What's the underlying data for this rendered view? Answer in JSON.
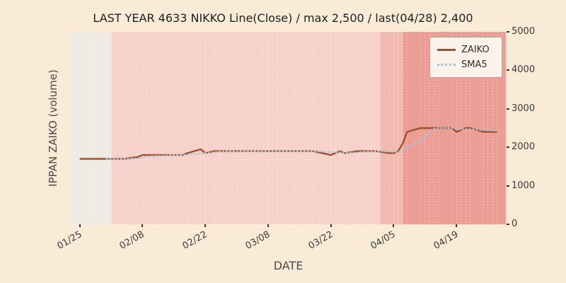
{
  "chart_data": {
    "type": "line",
    "title": "LAST YEAR 4633 NIKKO Line(Close) / max 2,500 / last(04/28) 2,400",
    "xlabel": "DATE",
    "ylabel": "IPPAN ZAIKO (volume)",
    "ylim": [
      0,
      5000
    ],
    "yticks": [
      0,
      1000,
      2000,
      3000,
      4000,
      5000
    ],
    "xticks": [
      "01/25",
      "02/08",
      "02/22",
      "03/08",
      "03/22",
      "04/05",
      "04/19"
    ],
    "x_domain": [
      "01/23",
      "04/30"
    ],
    "grid": "vertical-dotted-white",
    "legend_position": "upper right",
    "x": [
      "01/25",
      "01/26",
      "01/27",
      "01/28",
      "01/31",
      "02/01",
      "02/02",
      "02/03",
      "02/04",
      "02/07",
      "02/08",
      "02/09",
      "02/10",
      "02/14",
      "02/15",
      "02/16",
      "02/17",
      "02/18",
      "02/21",
      "02/22",
      "02/24",
      "02/25",
      "02/28",
      "03/01",
      "03/02",
      "03/03",
      "03/04",
      "03/07",
      "03/08",
      "03/09",
      "03/10",
      "03/11",
      "03/14",
      "03/15",
      "03/16",
      "03/17",
      "03/18",
      "03/22",
      "03/23",
      "03/24",
      "03/25",
      "03/28",
      "03/29",
      "03/30",
      "03/31",
      "04/01",
      "04/04",
      "04/05",
      "04/06",
      "04/07",
      "04/08",
      "04/11",
      "04/12",
      "04/13",
      "04/14",
      "04/15",
      "04/18",
      "04/19",
      "04/20",
      "04/21",
      "04/22",
      "04/25",
      "04/26",
      "04/27",
      "04/28"
    ],
    "series": [
      {
        "name": "ZAIKO",
        "color": "#a0512b",
        "style": "solid",
        "values": [
          1700,
          1700,
          1700,
          1700,
          1700,
          1700,
          1700,
          1700,
          1700,
          1750,
          1800,
          1800,
          1800,
          1800,
          1800,
          1800,
          1800,
          1850,
          1950,
          1850,
          1900,
          1900,
          1900,
          1900,
          1900,
          1900,
          1900,
          1900,
          1900,
          1900,
          1900,
          1900,
          1900,
          1900,
          1900,
          1900,
          1900,
          1800,
          1850,
          1900,
          1850,
          1900,
          1900,
          1900,
          1900,
          1900,
          1850,
          1850,
          1900,
          2100,
          2400,
          2500,
          2500,
          2500,
          2500,
          2500,
          2500,
          2400,
          2450,
          2500,
          2500,
          2400,
          2400,
          2400,
          2400
        ]
      },
      {
        "name": "SMA5",
        "color": "#a9c5da",
        "style": "dotted",
        "values": [
          null,
          null,
          null,
          null,
          1700,
          1700,
          1700,
          1700,
          1700,
          1710,
          1730,
          1750,
          1770,
          1790,
          1800,
          1800,
          1800,
          1810,
          1840,
          1850,
          1870,
          1890,
          1900,
          1890,
          1900,
          1900,
          1900,
          1900,
          1900,
          1900,
          1900,
          1900,
          1900,
          1900,
          1900,
          1900,
          1900,
          1880,
          1870,
          1870,
          1860,
          1860,
          1880,
          1890,
          1890,
          1900,
          1890,
          1880,
          1880,
          1920,
          2020,
          2150,
          2280,
          2400,
          2480,
          2500,
          2500,
          2480,
          2470,
          2470,
          2470,
          2450,
          2450,
          2440,
          2420
        ]
      }
    ],
    "bands": [
      {
        "from": "01/23",
        "to": "02/01",
        "color": "#f0eae4"
      },
      {
        "from": "02/01",
        "to": "04/02",
        "color": "#f6d2ca"
      },
      {
        "from": "04/02",
        "to": "04/07",
        "color": "#f0bab1"
      },
      {
        "from": "04/07",
        "to": "04/30",
        "color": "#ea9e95"
      }
    ],
    "annotations": {
      "max_value": "2,500",
      "last_date": "04/28",
      "last_value": "2,400"
    }
  },
  "colors": {
    "figure_background": "#faebd7",
    "zaiko_line": "#a0512b",
    "sma5_line": "#a9c5da",
    "legend_background": "#fbf2e9"
  }
}
